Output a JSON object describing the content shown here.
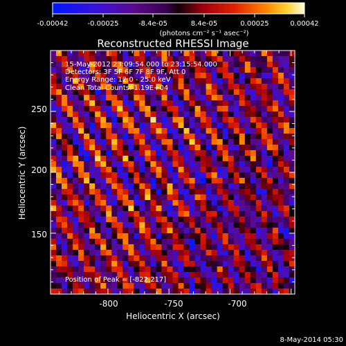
{
  "colorbar": {
    "tick_labels": [
      "-0.00042",
      "-0.00025",
      "-8.4e-05",
      "8.4e-05",
      "0.00025",
      "0.00042"
    ],
    "units_label": "(photons cm⁻² s⁻¹ asec⁻²)",
    "min": -0.00042,
    "max": 0.00042
  },
  "image": {
    "title": "Reconstructed RHESSI Image",
    "info_lines": [
      "15-May-2012 23:09:54.000 to 23:15:54.000",
      "Detectors: 3F 5F 6F 7F 8F 9F, Att 0",
      "Energy Range: 12.0 - 25.0 keV",
      "Clean    Total Counts: 1.19E+04"
    ],
    "peak_label": "Position of Peak = [-822,217]"
  },
  "axes": {
    "xlabel": "Heliocentric X (arcsec)",
    "ylabel": "Heliocentric Y (arcsec)",
    "xticks": [
      -800,
      -750,
      -700
    ],
    "yticks": [
      150,
      200,
      250
    ],
    "xlim": [
      -847,
      -647
    ],
    "ylim": [
      100,
      300
    ]
  },
  "timestamp": "8-May-2014 05:30",
  "chart_data": {
    "type": "heatmap",
    "title": "Reconstructed RHESSI Image",
    "xlabel": "Heliocentric X (arcsec)",
    "ylabel": "Heliocentric Y (arcsec)",
    "xlim": [
      -847,
      -647
    ],
    "ylim": [
      100,
      300
    ],
    "colorscale": "red-temperature",
    "value_range": [
      -0.00042,
      0.00042
    ],
    "peak_position": [
      -822,
      217
    ]
  }
}
